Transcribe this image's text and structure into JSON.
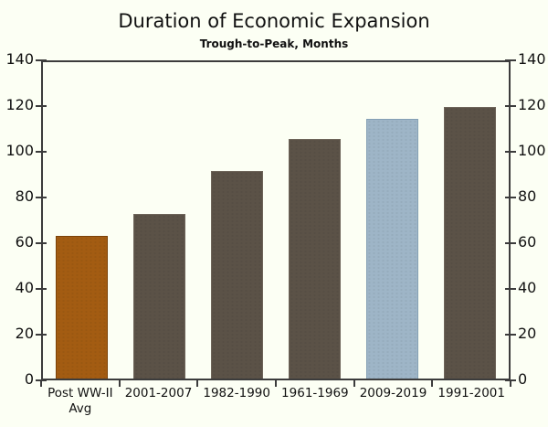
{
  "page": {
    "background_color": "#FCFFF4",
    "axis_color": "#3C3C3C",
    "text_color": "#111111"
  },
  "chart_data": {
    "type": "bar",
    "title": "Duration of Economic Expansion",
    "subtitle": "Trough-to-Peak, Months",
    "categories": [
      "Post WW-II Avg",
      "2001-2007",
      "1982-1990",
      "1961-1969",
      "2009-2019",
      "1991-2001"
    ],
    "values": [
      63,
      73,
      92,
      106,
      115,
      120
    ],
    "units": "months",
    "bar_colors": [
      "#A35C12",
      "#5B5247",
      "#5B5247",
      "#5B5247",
      "#9EB5C7",
      "#5B5247"
    ],
    "bar_border_colors": [
      "#7A4209",
      "#6E655A",
      "#6E655A",
      "#6E655A",
      "#84A0B4",
      "#6E655A"
    ],
    "highlighted_category": "2009-2019",
    "ylim": [
      0,
      140
    ],
    "yticks": [
      0,
      20,
      40,
      60,
      80,
      100,
      120,
      140
    ],
    "y_axis_sides": "both",
    "grid": false,
    "legend": "none"
  }
}
